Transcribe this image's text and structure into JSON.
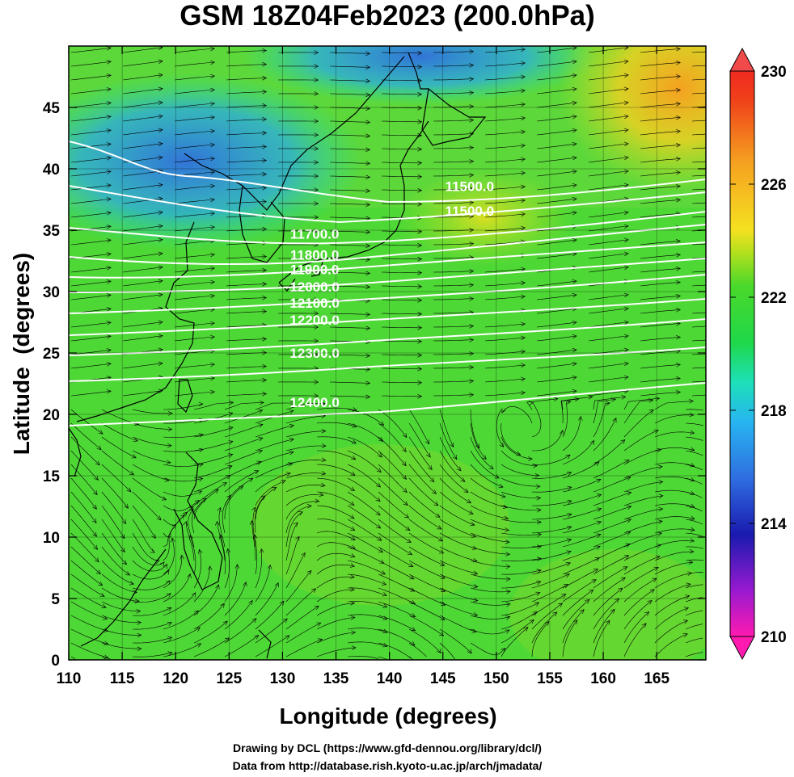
{
  "title": "GSM 18Z04Feb2023 (200.0hPa)",
  "xaxis": {
    "label": "Longitude (degrees)",
    "ticks": [
      "110",
      "115",
      "120",
      "125",
      "130",
      "135",
      "140",
      "145",
      "150",
      "155",
      "160",
      "165"
    ]
  },
  "yaxis": {
    "label": "Latitude  (degrees)",
    "ticks": [
      "0",
      "5",
      "10",
      "15",
      "20",
      "25",
      "30",
      "35",
      "40",
      "45"
    ]
  },
  "colorbar": {
    "labels": [
      "230",
      "226",
      "222",
      "218",
      "214",
      "210"
    ]
  },
  "contour_labels": [
    {
      "text": "11500.0",
      "lon": 147.5,
      "lat": 38.2
    },
    {
      "text": "11500.0",
      "lon": 147.5,
      "lat": 36.2
    },
    {
      "text": "11700.0",
      "lon": 133.0,
      "lat": 34.3
    },
    {
      "text": "11800.0",
      "lon": 133.0,
      "lat": 32.6
    },
    {
      "text": "11900.0",
      "lon": 133.0,
      "lat": 31.4
    },
    {
      "text": "12000.0",
      "lon": 133.0,
      "lat": 30.0
    },
    {
      "text": "12100.0",
      "lon": 133.0,
      "lat": 28.7
    },
    {
      "text": "12200.0",
      "lon": 133.0,
      "lat": 27.3
    },
    {
      "text": "12300.0",
      "lon": 133.0,
      "lat": 24.6
    },
    {
      "text": "12400.0",
      "lon": 133.0,
      "lat": 20.6
    }
  ],
  "credits": [
    "Drawing by DCL (https://www.gfd-dennou.org/library/dcl/)",
    "Data from http://database.rish.kyoto-u.ac.jp/arch/jmadata/"
  ]
}
